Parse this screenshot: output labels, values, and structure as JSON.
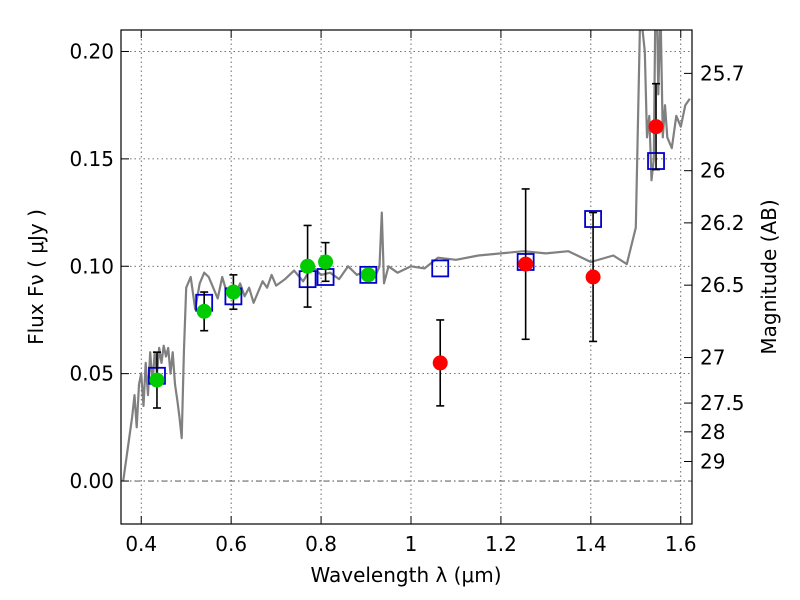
{
  "chart_data": {
    "type": "scatter",
    "title": "",
    "xlabel": "Wavelength  λ (μm)",
    "ylabel": "Flux  Fν  ( μJy )",
    "y2label": "Magnitude (AB)",
    "xlim": [
      0.355,
      1.625
    ],
    "ylim": [
      -0.02,
      0.21
    ],
    "xticks": [
      0.4,
      0.6,
      0.8,
      1.0,
      1.2,
      1.4,
      1.6
    ],
    "xtick_labels": [
      "0.4",
      "0.6",
      "0.8",
      "1",
      "1.2",
      "1.4",
      "1.6"
    ],
    "yticks": [
      0.0,
      0.05,
      0.1,
      0.15,
      0.2
    ],
    "ytick_labels": [
      "0.00",
      "0.05",
      "0.10",
      "0.15",
      "0.20"
    ],
    "mag_ticks": [
      {
        "label": "25.7",
        "flux": 0.1898
      },
      {
        "label": "26",
        "flux": 0.1445
      },
      {
        "label": "26.2",
        "flux": 0.1202
      },
      {
        "label": "26.5",
        "flux": 0.0912
      },
      {
        "label": "27",
        "flux": 0.0575
      },
      {
        "label": "27.5",
        "flux": 0.0363
      },
      {
        "label": "28",
        "flux": 0.0229
      },
      {
        "label": "29",
        "flux": 0.0091
      }
    ],
    "zero_line": 0.0,
    "grid": true,
    "series": [
      {
        "name": "model spectrum",
        "kind": "line",
        "color": "#808080",
        "x": [
          0.36,
          0.37,
          0.38,
          0.385,
          0.39,
          0.395,
          0.4,
          0.405,
          0.41,
          0.415,
          0.42,
          0.425,
          0.43,
          0.435,
          0.44,
          0.445,
          0.45,
          0.455,
          0.46,
          0.465,
          0.47,
          0.475,
          0.48,
          0.485,
          0.49,
          0.495,
          0.5,
          0.51,
          0.52,
          0.53,
          0.54,
          0.55,
          0.56,
          0.57,
          0.58,
          0.59,
          0.6,
          0.61,
          0.62,
          0.63,
          0.64,
          0.65,
          0.66,
          0.67,
          0.68,
          0.69,
          0.7,
          0.72,
          0.74,
          0.76,
          0.78,
          0.8,
          0.82,
          0.84,
          0.86,
          0.88,
          0.9,
          0.92,
          0.93,
          0.935,
          0.94,
          0.95,
          0.97,
          1.0,
          1.03,
          1.06,
          1.1,
          1.15,
          1.2,
          1.25,
          1.3,
          1.35,
          1.4,
          1.45,
          1.48,
          1.5,
          1.51,
          1.52,
          1.525,
          1.53,
          1.535,
          1.54,
          1.545,
          1.55,
          1.555,
          1.56,
          1.565,
          1.57,
          1.58,
          1.59,
          1.6,
          1.61,
          1.62
        ],
        "y": [
          0.0,
          0.015,
          0.03,
          0.04,
          0.025,
          0.045,
          0.05,
          0.035,
          0.055,
          0.04,
          0.06,
          0.045,
          0.06,
          0.05,
          0.062,
          0.055,
          0.063,
          0.058,
          0.062,
          0.05,
          0.06,
          0.045,
          0.038,
          0.03,
          0.02,
          0.06,
          0.09,
          0.095,
          0.08,
          0.092,
          0.097,
          0.095,
          0.09,
          0.085,
          0.095,
          0.088,
          0.09,
          0.087,
          0.092,
          0.086,
          0.09,
          0.083,
          0.088,
          0.093,
          0.09,
          0.096,
          0.091,
          0.094,
          0.098,
          0.093,
          0.1,
          0.096,
          0.097,
          0.094,
          0.1,
          0.096,
          0.098,
          0.095,
          0.1,
          0.125,
          0.092,
          0.1,
          0.097,
          0.1,
          0.099,
          0.104,
          0.103,
          0.105,
          0.106,
          0.107,
          0.106,
          0.107,
          0.102,
          0.105,
          0.101,
          0.118,
          0.22,
          0.2,
          0.16,
          0.17,
          0.14,
          0.15,
          0.25,
          0.18,
          0.22,
          0.16,
          0.175,
          0.16,
          0.155,
          0.17,
          0.165,
          0.175,
          0.178
        ]
      },
      {
        "name": "model photometry",
        "kind": "open-square",
        "color": "#0000cc",
        "x": [
          0.435,
          0.54,
          0.605,
          0.77,
          0.81,
          0.905,
          1.065,
          1.255,
          1.405,
          1.545
        ],
        "y": [
          0.049,
          0.083,
          0.086,
          0.094,
          0.095,
          0.096,
          0.099,
          0.102,
          0.122,
          0.149
        ]
      },
      {
        "name": "green detections",
        "kind": "filled-circle",
        "color": "#00cc00",
        "x": [
          0.435,
          0.54,
          0.605,
          0.77,
          0.81,
          0.905
        ],
        "y": [
          0.047,
          0.079,
          0.088,
          0.1,
          0.102,
          0.096
        ],
        "err": [
          0.013,
          0.009,
          0.008,
          0.019,
          0.009,
          0.0
        ]
      },
      {
        "name": "red detections",
        "kind": "filled-circle",
        "color": "#ff0000",
        "x": [
          1.065,
          1.255,
          1.405,
          1.545
        ],
        "y": [
          0.055,
          0.101,
          0.095,
          0.165
        ],
        "err": [
          0.02,
          0.035,
          0.03,
          0.02
        ]
      }
    ]
  }
}
